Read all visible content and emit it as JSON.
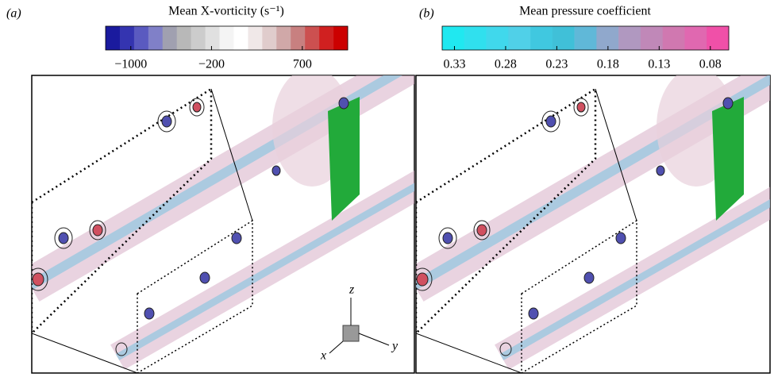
{
  "panels": [
    {
      "label": "(a)",
      "colorbar": {
        "title": "Mean X-vorticity (s⁻¹)",
        "clim": [
          -1250,
          1150
        ],
        "colors": [
          "#1a1a9e",
          "#3434b0",
          "#5a5ac0",
          "#8080c8",
          "#a0a0b0",
          "#b8b8b8",
          "#cccccc",
          "#e0e0e0",
          "#f4f4f4",
          "#ffffff",
          "#f0e8e8",
          "#e0cccc",
          "#d0a8a8",
          "#c88080",
          "#cc5050",
          "#d02020",
          "#cc0000"
        ],
        "ticks": [
          {
            "value": -1000,
            "label": "−1000"
          },
          {
            "value": -200,
            "label": "−200"
          },
          700
        ]
      }
    },
    {
      "label": "(b)",
      "colorbar": {
        "title": "Mean pressure coefficient",
        "clim": [
          0.342,
          0.062
        ],
        "colors": [
          "#20e8f0",
          "#30e0ee",
          "#40d8ec",
          "#50d0e8",
          "#40c8e0",
          "#40c0d8",
          "#60b8d8",
          "#90a8cc",
          "#b098c0",
          "#c088b8",
          "#d078b0",
          "#e068b0",
          "#f050a8"
        ],
        "ticks": [
          0.33,
          0.28,
          0.23,
          0.18,
          0.13,
          0.08
        ]
      }
    }
  ],
  "axes_triad": {
    "x": "x",
    "y": "y",
    "z": "z"
  }
}
